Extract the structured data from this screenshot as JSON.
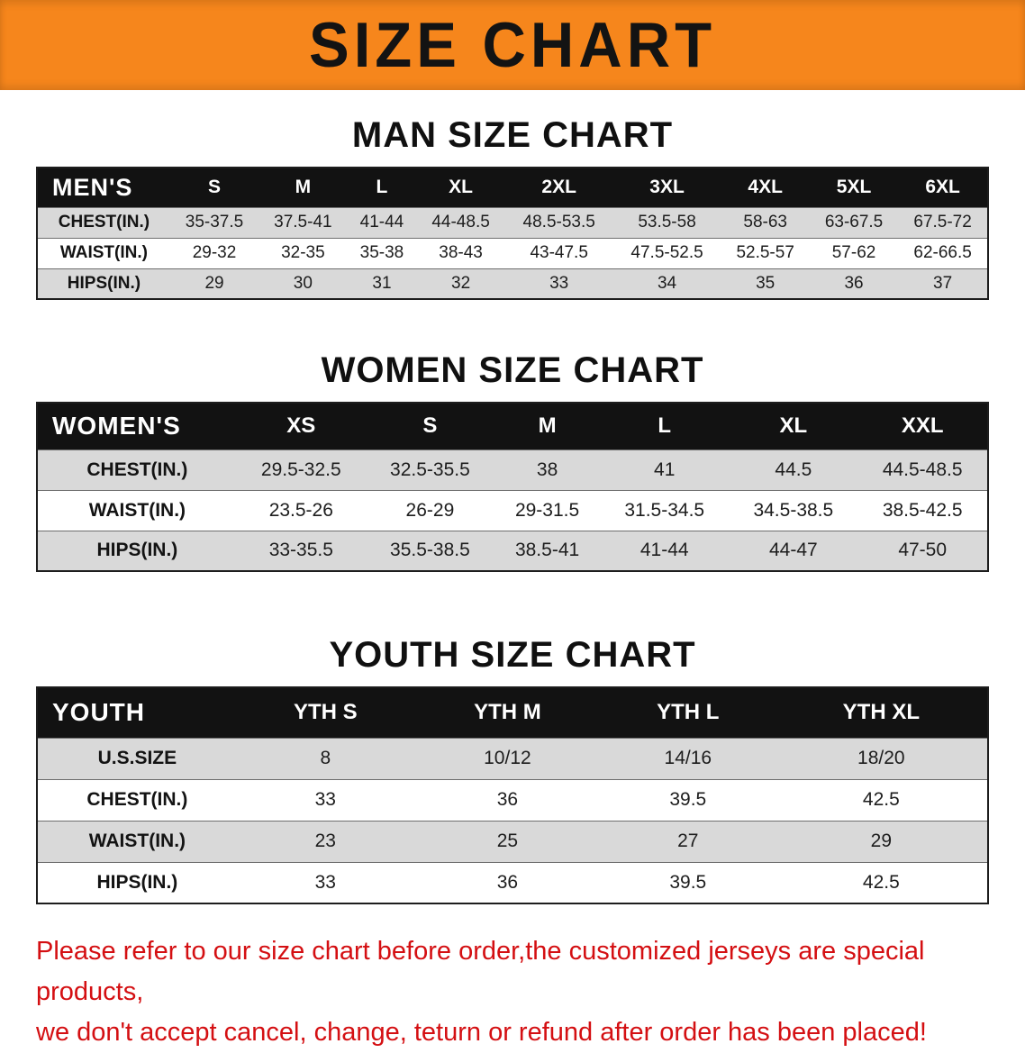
{
  "banner": {
    "title": "SIZE CHART",
    "bg_color": "#f6861c"
  },
  "sections": {
    "men": {
      "heading": "MAN SIZE CHART",
      "table": {
        "header": [
          "MEN'S",
          "S",
          "M",
          "L",
          "XL",
          "2XL",
          "3XL",
          "4XL",
          "5XL",
          "6XL"
        ],
        "rows": [
          [
            "CHEST(IN.)",
            "35-37.5",
            "37.5-41",
            "41-44",
            "44-48.5",
            "48.5-53.5",
            "53.5-58",
            "58-63",
            "63-67.5",
            "67.5-72"
          ],
          [
            "WAIST(IN.)",
            "29-32",
            "32-35",
            "35-38",
            "38-43",
            "43-47.5",
            "47.5-52.5",
            "52.5-57",
            "57-62",
            "62-66.5"
          ],
          [
            "HIPS(IN.)",
            "29",
            "30",
            "31",
            "32",
            "33",
            "34",
            "35",
            "36",
            "37"
          ]
        ]
      }
    },
    "women": {
      "heading": "WOMEN SIZE CHART",
      "table": {
        "header": [
          "WOMEN'S",
          "XS",
          "S",
          "M",
          "L",
          "XL",
          "XXL"
        ],
        "rows": [
          [
            "CHEST(IN.)",
            "29.5-32.5",
            "32.5-35.5",
            "38",
            "41",
            "44.5",
            "44.5-48.5"
          ],
          [
            "WAIST(IN.)",
            "23.5-26",
            "26-29",
            "29-31.5",
            "31.5-34.5",
            "34.5-38.5",
            "38.5-42.5"
          ],
          [
            "HIPS(IN.)",
            "33-35.5",
            "35.5-38.5",
            "38.5-41",
            "41-44",
            "44-47",
            "47-50"
          ]
        ]
      }
    },
    "youth": {
      "heading": "YOUTH SIZE CHART",
      "table": {
        "header": [
          "YOUTH",
          "YTH S",
          "YTH M",
          "YTH L",
          "YTH XL"
        ],
        "rows": [
          [
            "U.S.SIZE",
            "8",
            "10/12",
            "14/16",
            "18/20"
          ],
          [
            "CHEST(IN.)",
            "33",
            "36",
            "39.5",
            "42.5"
          ],
          [
            "WAIST(IN.)",
            "23",
            "25",
            "27",
            "29"
          ],
          [
            "HIPS(IN.)",
            "33",
            "36",
            "39.5",
            "42.5"
          ]
        ]
      }
    }
  },
  "footer_note": {
    "color": "#d40f12",
    "lines": [
      "Please refer to our size chart before order,the customized jerseys are special products,",
      "we don't accept cancel, change, teturn or refund after order has been placed!"
    ]
  }
}
